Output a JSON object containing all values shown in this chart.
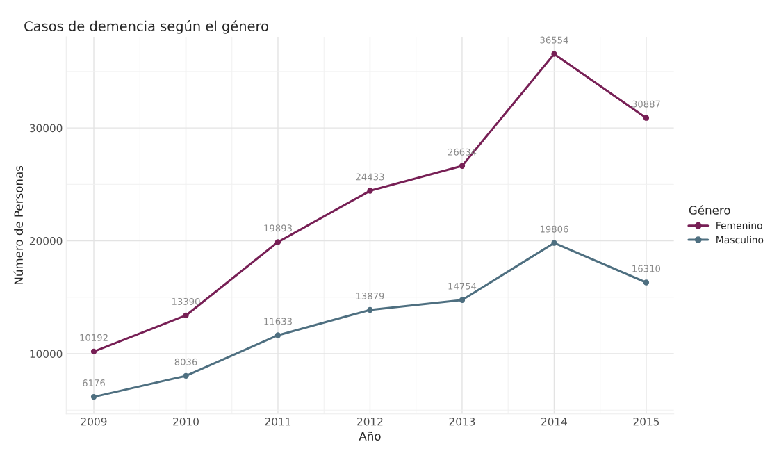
{
  "chart_data": {
    "type": "line",
    "title": "Casos de demencia según el género",
    "xlabel": "Año",
    "ylabel": "Número de Personas",
    "legend_title": "Género",
    "x": [
      2009,
      2010,
      2011,
      2012,
      2013,
      2014,
      2015
    ],
    "series": [
      {
        "name": "Femenino",
        "color": "#771f55",
        "values": [
          10192,
          13390,
          19893,
          24433,
          26634,
          36554,
          30887
        ]
      },
      {
        "name": "Masculino",
        "color": "#4e6f80",
        "values": [
          6176,
          8036,
          11633,
          13879,
          14754,
          19806,
          16310
        ]
      }
    ],
    "xlim": [
      2008.7,
      2015.3
    ],
    "xticks": [
      2009,
      2010,
      2011,
      2012,
      2013,
      2014,
      2015
    ],
    "ylim": [
      4657,
      38073
    ],
    "yticks": [
      10000,
      20000,
      30000
    ],
    "grid": true,
    "legend": "right",
    "marker": "circle",
    "line_style": "solid",
    "data_labels": true
  }
}
